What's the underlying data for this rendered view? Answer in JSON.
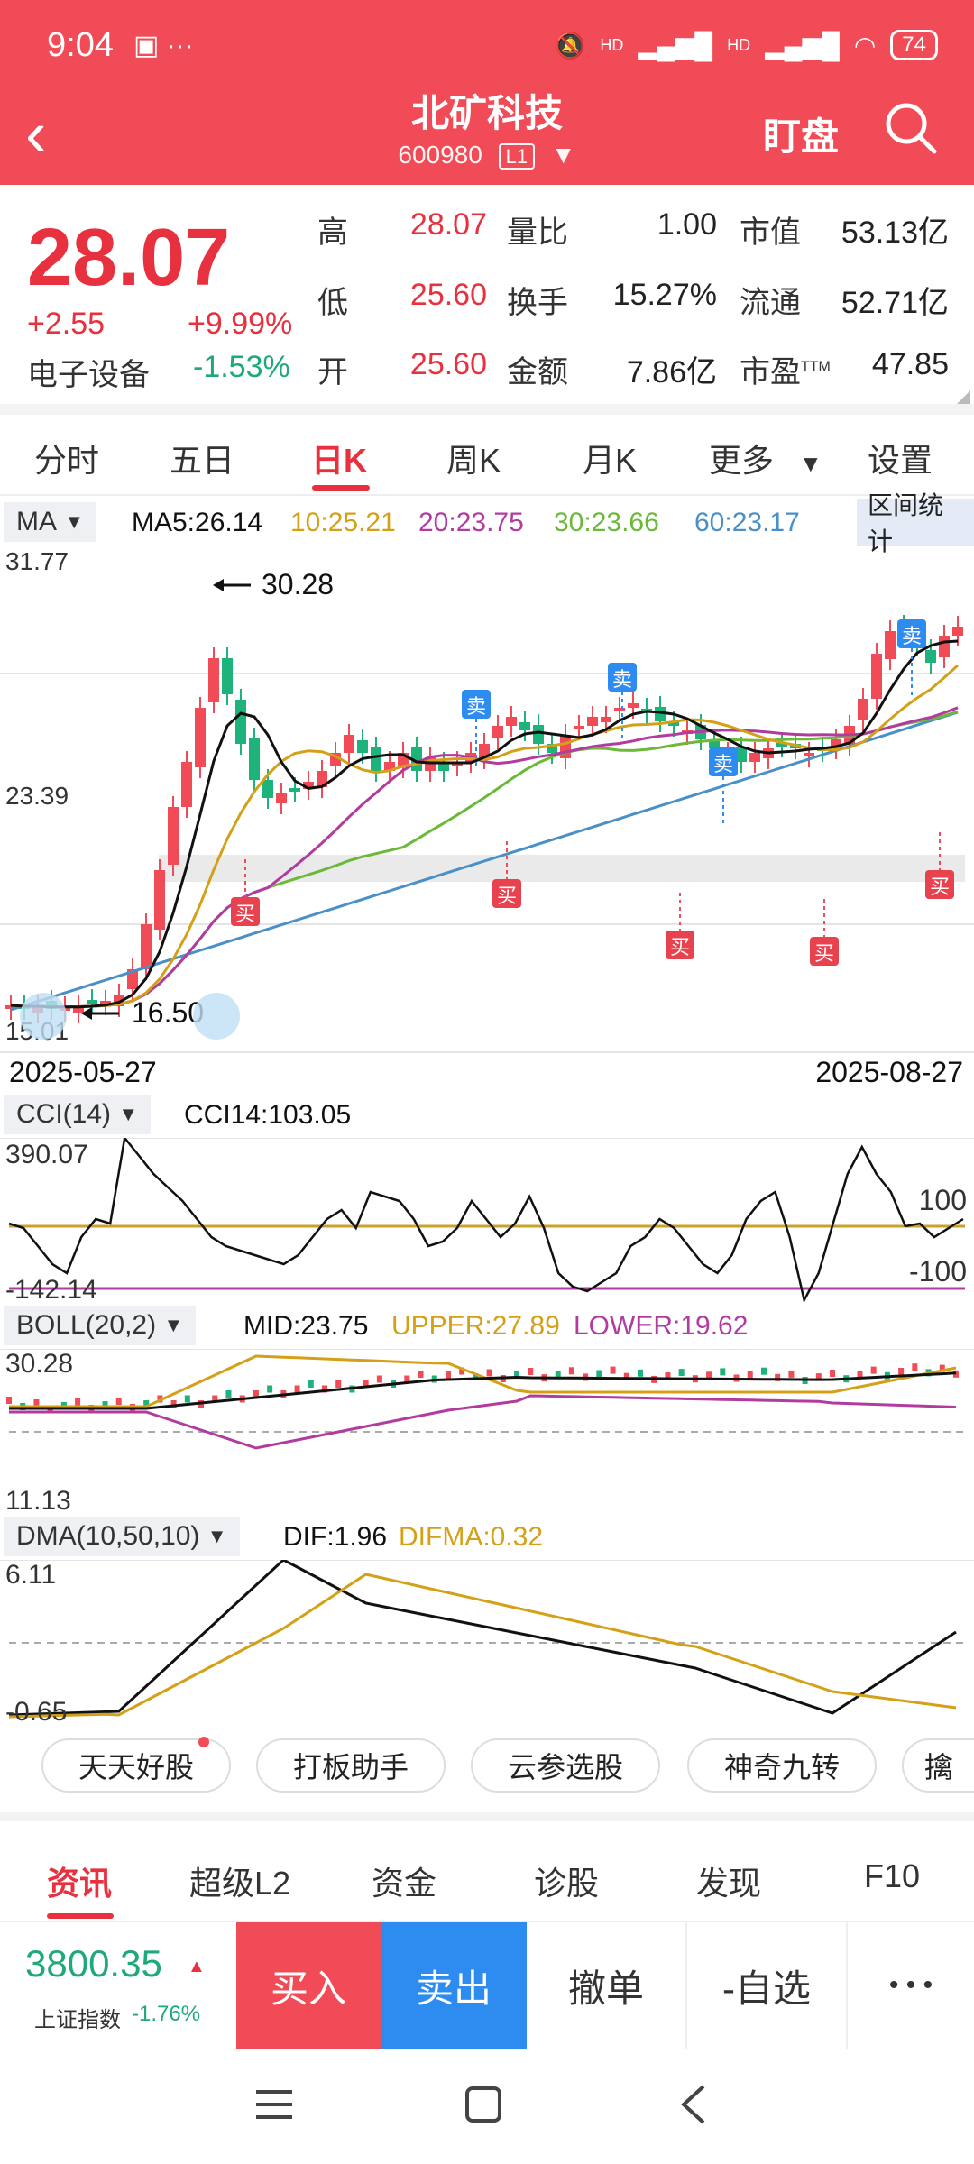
{
  "status": {
    "time": "9:04",
    "battery": "74",
    "hd1": "HD",
    "hd2": "HD"
  },
  "header": {
    "title": "北矿科技",
    "code": "600980",
    "level": "L1",
    "watch_label": "盯盘"
  },
  "quote": {
    "price": "28.07",
    "change": "+2.55",
    "change_pct": "+9.99%",
    "sector": "电子设备",
    "sector_pct": "-1.53%",
    "rows": [
      [
        {
          "label": "高",
          "value": "28.07"
        },
        {
          "label": "量比",
          "value": "1.00"
        },
        {
          "label": "市值",
          "value": "53.13亿"
        }
      ],
      [
        {
          "label": "低",
          "value": "25.60"
        },
        {
          "label": "换手",
          "value": "15.27%"
        },
        {
          "label": "流通",
          "value": "52.71亿"
        }
      ],
      [
        {
          "label": "开",
          "value": "25.60"
        },
        {
          "label": "金额",
          "value": "7.86亿"
        },
        {
          "label": "市盈",
          "value": "47.85",
          "sup": "TTM"
        }
      ]
    ]
  },
  "tabs": [
    {
      "label": "分时"
    },
    {
      "label": "五日"
    },
    {
      "label": "日K",
      "active": true
    },
    {
      "label": "周K"
    },
    {
      "label": "月K"
    },
    {
      "label": "更多"
    },
    {
      "label": "设置"
    }
  ],
  "ma": {
    "name": "MA",
    "ma5": "MA5:26.14",
    "ma10": "10:25.21",
    "ma20": "20:23.75",
    "ma30": "30:23.66",
    "ma60": "60:23.17",
    "zone_label": "区间统计",
    "colors": {
      "ma5": "#111111",
      "ma10": "#D4A017",
      "ma20": "#B23BA0",
      "ma30": "#6CB838",
      "ma60": "#4A90C8"
    }
  },
  "kline": {
    "y_top": "31.77",
    "y_mid": "23.39",
    "y_bot": "15.01",
    "high_marker": "30.28",
    "low_marker": "16.50",
    "date_start": "2025-05-27",
    "date_end": "2025-08-27",
    "buy_label": "买",
    "sell_label": "卖"
  },
  "cci": {
    "name": "CCI(14)",
    "value": "CCI14:103.05",
    "y_top": "390.07",
    "y_bot": "-142.14",
    "level_hi": "100",
    "level_lo": "-100"
  },
  "boll": {
    "name": "BOLL(20,2)",
    "mid": "MID:23.75",
    "upper": "UPPER:27.89",
    "lower": "LOWER:19.62",
    "y_top": "30.28",
    "y_bot": "11.13"
  },
  "dma": {
    "name": "DMA(10,50,10)",
    "dif": "DIF:1.96",
    "difma": "DIFMA:0.32",
    "y_top": "6.11",
    "y_bot": "-0.65"
  },
  "tools": [
    {
      "label": "天天好股"
    },
    {
      "label": "打板助手"
    },
    {
      "label": "云参选股"
    },
    {
      "label": "神奇九转"
    },
    {
      "label": "擒"
    }
  ],
  "bottom_tabs": [
    {
      "label": "资讯",
      "active": true
    },
    {
      "label": "超级L2"
    },
    {
      "label": "资金"
    },
    {
      "label": "诊股"
    },
    {
      "label": "发现"
    },
    {
      "label": "F10"
    }
  ],
  "trade": {
    "index_value": "3800.35",
    "index_name": "上证指数",
    "index_pct": "-1.76%",
    "buy": "买入",
    "sell": "卖出",
    "cancel": "撤单",
    "fav": "-自选",
    "more": "• • •"
  }
}
